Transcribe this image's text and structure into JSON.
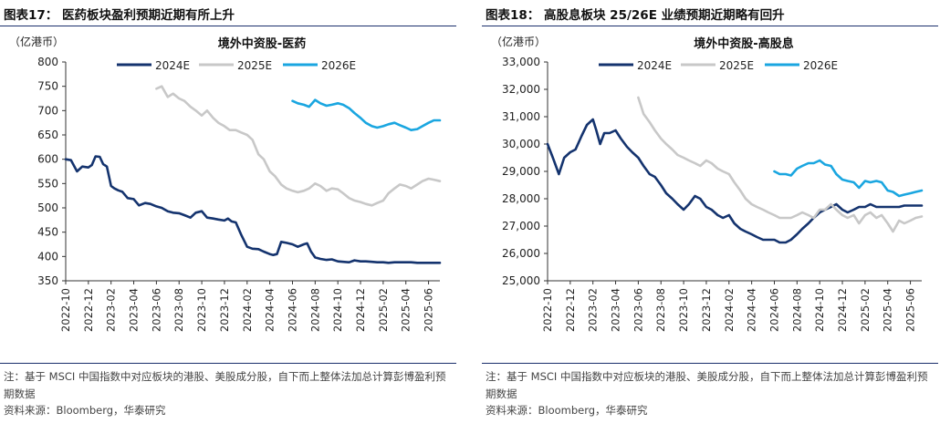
{
  "colors": {
    "s2024": "#14336e",
    "s2025": "#c8c8c8",
    "s2026": "#1aa6e0",
    "frame": "#1a2f6b",
    "axis": "#333333"
  },
  "panels": [
    {
      "fig_title": "图表17：  医药板块盈利预期近期有所上升",
      "note": "注：基于 MSCI 中国指数中对应板块的港股、美股成分股，自下而上整体法加总计算彭博盈利预期数据",
      "source": "资料来源：Bloomberg，华泰研究",
      "chart_data": {
        "type": "line",
        "title": "境外中资股-医药",
        "unit": "（亿港币）",
        "ylim": [
          350,
          800
        ],
        "yticks": [
          "350",
          "400",
          "450",
          "500",
          "550",
          "600",
          "650",
          "700",
          "750",
          "800"
        ],
        "xlim": [
          "2022-10",
          "2025-07"
        ],
        "xticks": [
          "2022-10",
          "2022-12",
          "2023-02",
          "2023-04",
          "2023-06",
          "2023-08",
          "2023-10",
          "2023-12",
          "2024-02",
          "2024-04",
          "2024-06",
          "2024-08",
          "2024-10",
          "2024-12",
          "2025-02",
          "2025-04",
          "2025-06"
        ],
        "legend": "top",
        "series": [
          {
            "name": "2024E",
            "color_key": "s2024",
            "x": [
              "2022-10",
              "2022-10-15",
              "2022-11",
              "2022-11-15",
              "2022-12",
              "2022-12-10",
              "2022-12-20",
              "2023-01",
              "2023-01-10",
              "2023-01-20",
              "2023-02",
              "2023-02-10",
              "2023-02-20",
              "2023-03",
              "2023-03-15",
              "2023-04",
              "2023-04-15",
              "2023-05",
              "2023-05-15",
              "2023-06",
              "2023-06-15",
              "2023-07",
              "2023-07-15",
              "2023-08",
              "2023-08-15",
              "2023-09",
              "2023-09-15",
              "2023-10",
              "2023-10-15",
              "2023-11",
              "2023-11-15",
              "2023-12",
              "2023-12-10",
              "2023-12-20",
              "2024-01",
              "2024-01-15",
              "2024-02",
              "2024-02-15",
              "2024-03",
              "2024-03-15",
              "2024-04",
              "2024-04-10",
              "2024-04-20",
              "2024-05",
              "2024-05-15",
              "2024-06",
              "2024-06-15",
              "2024-07",
              "2024-07-10",
              "2024-07-20",
              "2024-08",
              "2024-08-15",
              "2024-09",
              "2024-09-15",
              "2024-10",
              "2024-10-15",
              "2024-11",
              "2024-11-15",
              "2024-12",
              "2024-12-15",
              "2025-01",
              "2025-01-15",
              "2025-02",
              "2025-02-15",
              "2025-03",
              "2025-03-15",
              "2025-04",
              "2025-04-15",
              "2025-05",
              "2025-05-15",
              "2025-06",
              "2025-06-15",
              "2025-07"
            ],
            "values": [
              600,
              598,
              575,
              585,
              583,
              588,
              606,
              605,
              590,
              585,
              545,
              540,
              536,
              533,
              520,
              518,
              505,
              510,
              508,
              503,
              500,
              493,
              490,
              489,
              485,
              480,
              490,
              493,
              480,
              478,
              476,
              474,
              478,
              472,
              470,
              445,
              420,
              416,
              415,
              410,
              405,
              403,
              405,
              430,
              428,
              425,
              420,
              425,
              427,
              410,
              398,
              395,
              393,
              394,
              390,
              389,
              388,
              392,
              390,
              390,
              389,
              388,
              388,
              387,
              388,
              388,
              388,
              388,
              387,
              387,
              387,
              387,
              387
            ]
          },
          {
            "name": "2025E",
            "color_key": "s2025",
            "x": [
              "2023-06",
              "2023-06-15",
              "2023-07",
              "2023-07-15",
              "2023-08",
              "2023-08-15",
              "2023-09",
              "2023-09-15",
              "2023-10",
              "2023-10-15",
              "2023-11",
              "2023-11-15",
              "2023-12",
              "2023-12-15",
              "2024-01",
              "2024-01-15",
              "2024-02",
              "2024-02-15",
              "2024-03",
              "2024-03-15",
              "2024-04",
              "2024-04-15",
              "2024-05",
              "2024-05-15",
              "2024-06",
              "2024-06-15",
              "2024-07",
              "2024-07-15",
              "2024-08",
              "2024-08-15",
              "2024-09",
              "2024-09-15",
              "2024-10",
              "2024-10-15",
              "2024-11",
              "2024-11-15",
              "2024-12",
              "2024-12-15",
              "2025-01",
              "2025-01-15",
              "2025-02",
              "2025-02-15",
              "2025-03",
              "2025-03-15",
              "2025-04",
              "2025-04-15",
              "2025-05",
              "2025-05-15",
              "2025-06",
              "2025-06-15",
              "2025-07"
            ],
            "values": [
              745,
              750,
              728,
              735,
              725,
              720,
              708,
              700,
              690,
              700,
              685,
              675,
              668,
              660,
              660,
              655,
              650,
              640,
              610,
              600,
              575,
              565,
              548,
              540,
              535,
              532,
              535,
              540,
              550,
              545,
              535,
              540,
              538,
              530,
              520,
              515,
              512,
              508,
              505,
              510,
              515,
              530,
              540,
              548,
              545,
              540,
              548,
              555,
              560,
              558,
              555
            ]
          },
          {
            "name": "2026E",
            "color_key": "s2026",
            "x": [
              "2024-06",
              "2024-06-15",
              "2024-07",
              "2024-07-15",
              "2024-08",
              "2024-08-15",
              "2024-09",
              "2024-09-15",
              "2024-10",
              "2024-10-15",
              "2024-11",
              "2024-11-15",
              "2024-12",
              "2024-12-15",
              "2025-01",
              "2025-01-15",
              "2025-02",
              "2025-02-15",
              "2025-03",
              "2025-03-15",
              "2025-04",
              "2025-04-15",
              "2025-05",
              "2025-05-15",
              "2025-06",
              "2025-06-15",
              "2025-07"
            ],
            "values": [
              720,
              715,
              712,
              708,
              722,
              715,
              710,
              712,
              715,
              712,
              705,
              695,
              685,
              675,
              668,
              665,
              668,
              672,
              675,
              670,
              665,
              660,
              662,
              668,
              675,
              680,
              680
            ]
          }
        ]
      }
    },
    {
      "fig_title": "图表18：  高股息板块 25/26E 业绩预期近期略有回升",
      "note": "注：基于 MSCI 中国指数中对应板块的港股、美股成分股，自下而上整体法加总计算彭博盈利预期数据",
      "source": "资料来源：Bloomberg，华泰研究",
      "chart_data": {
        "type": "line",
        "title": "境外中资股-高股息",
        "unit": "（亿港币）",
        "ylim": [
          25000,
          33000
        ],
        "yticks": [
          "25,000",
          "26,000",
          "27,000",
          "28,000",
          "29,000",
          "30,000",
          "31,000",
          "32,000",
          "33,000"
        ],
        "xlim": [
          "2022-10",
          "2025-07"
        ],
        "xticks": [
          "2022-10",
          "2022-12",
          "2023-02",
          "2023-04",
          "2023-06",
          "2023-08",
          "2023-10",
          "2023-12",
          "2024-02",
          "2024-04",
          "2024-06",
          "2024-08",
          "2024-10",
          "2024-12",
          "2025-02",
          "2025-04",
          "2025-06"
        ],
        "legend": "top",
        "series": [
          {
            "name": "2024E",
            "color_key": "s2024",
            "x": [
              "2022-10",
              "2022-10-15",
              "2022-11",
              "2022-11-15",
              "2022-12",
              "2022-12-15",
              "2023-01",
              "2023-01-15",
              "2023-02",
              "2023-02-10",
              "2023-02-20",
              "2023-03",
              "2023-03-15",
              "2023-04",
              "2023-04-15",
              "2023-05",
              "2023-05-15",
              "2023-06",
              "2023-06-15",
              "2023-07",
              "2023-07-15",
              "2023-08",
              "2023-08-15",
              "2023-09",
              "2023-09-15",
              "2023-10",
              "2023-10-15",
              "2023-11",
              "2023-11-15",
              "2023-12",
              "2023-12-15",
              "2024-01",
              "2024-01-15",
              "2024-02",
              "2024-02-15",
              "2024-03",
              "2024-03-15",
              "2024-04",
              "2024-04-15",
              "2024-05",
              "2024-05-15",
              "2024-06",
              "2024-06-15",
              "2024-07",
              "2024-07-15",
              "2024-08",
              "2024-08-15",
              "2024-09",
              "2024-09-15",
              "2024-10",
              "2024-10-15",
              "2024-11",
              "2024-11-15",
              "2024-12",
              "2024-12-15",
              "2025-01",
              "2025-01-15",
              "2025-02",
              "2025-02-15",
              "2025-03",
              "2025-03-15",
              "2025-04",
              "2025-04-15",
              "2025-05",
              "2025-05-15",
              "2025-06",
              "2025-06-15",
              "2025-07"
            ],
            "values": [
              30000,
              29500,
              28900,
              29500,
              29700,
              29800,
              30300,
              30700,
              30900,
              30500,
              30000,
              30400,
              30400,
              30500,
              30200,
              29900,
              29700,
              29500,
              29200,
              28900,
              28800,
              28500,
              28200,
              28000,
              27800,
              27600,
              27800,
              28100,
              28000,
              27700,
              27600,
              27400,
              27300,
              27400,
              27100,
              26900,
              26800,
              26700,
              26600,
              26500,
              26500,
              26500,
              26400,
              26400,
              26500,
              26700,
              26900,
              27100,
              27300,
              27500,
              27600,
              27700,
              27800,
              27600,
              27500,
              27600,
              27700,
              27700,
              27800,
              27700,
              27700,
              27700,
              27700,
              27700,
              27750,
              27750,
              27750,
              27750
            ]
          },
          {
            "name": "2025E",
            "color_key": "s2025",
            "x": [
              "2023-06",
              "2023-06-15",
              "2023-07",
              "2023-07-15",
              "2023-08",
              "2023-08-15",
              "2023-09",
              "2023-09-15",
              "2023-10",
              "2023-10-15",
              "2023-11",
              "2023-11-15",
              "2023-12",
              "2023-12-15",
              "2024-01",
              "2024-01-15",
              "2024-02",
              "2024-02-15",
              "2024-03",
              "2024-03-15",
              "2024-04",
              "2024-04-15",
              "2024-05",
              "2024-05-15",
              "2024-06",
              "2024-06-15",
              "2024-07",
              "2024-07-15",
              "2024-08",
              "2024-08-15",
              "2024-09",
              "2024-09-15",
              "2024-10",
              "2024-10-15",
              "2024-11",
              "2024-11-15",
              "2024-12",
              "2024-12-15",
              "2025-01",
              "2025-01-15",
              "2025-02",
              "2025-02-15",
              "2025-03",
              "2025-03-15",
              "2025-04",
              "2025-04-15",
              "2025-05",
              "2025-05-15",
              "2025-06",
              "2025-06-15",
              "2025-07"
            ],
            "values": [
              31700,
              31100,
              30800,
              30500,
              30200,
              30000,
              29800,
              29600,
              29500,
              29400,
              29300,
              29200,
              29400,
              29300,
              29100,
              29000,
              28900,
              28600,
              28300,
              28000,
              27800,
              27700,
              27600,
              27500,
              27400,
              27300,
              27300,
              27300,
              27400,
              27500,
              27400,
              27300,
              27600,
              27600,
              27800,
              27600,
              27400,
              27300,
              27400,
              27100,
              27400,
              27500,
              27300,
              27400,
              27100,
              26800,
              27200,
              27100,
              27200,
              27300,
              27350
            ]
          },
          {
            "name": "2026E",
            "color_key": "s2026",
            "x": [
              "2024-06",
              "2024-06-15",
              "2024-07",
              "2024-07-15",
              "2024-08",
              "2024-08-15",
              "2024-09",
              "2024-09-15",
              "2024-10",
              "2024-10-15",
              "2024-11",
              "2024-11-15",
              "2024-12",
              "2024-12-15",
              "2025-01",
              "2025-01-15",
              "2025-02",
              "2025-02-15",
              "2025-03",
              "2025-03-15",
              "2025-04",
              "2025-04-15",
              "2025-05",
              "2025-05-15",
              "2025-06",
              "2025-06-15",
              "2025-07"
            ],
            "values": [
              29000,
              28900,
              28900,
              28850,
              29100,
              29200,
              29300,
              29300,
              29400,
              29250,
              29200,
              28900,
              28700,
              28650,
              28600,
              28400,
              28650,
              28600,
              28650,
              28600,
              28300,
              28250,
              28100,
              28150,
              28200,
              28250,
              28300
            ]
          }
        ]
      }
    }
  ]
}
